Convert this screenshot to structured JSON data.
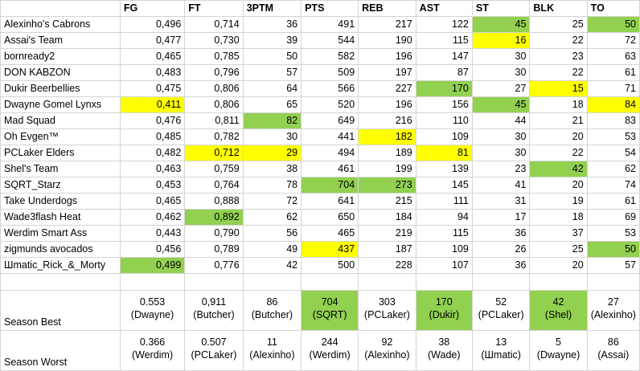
{
  "columns": [
    "FG",
    "FT",
    "3PTM",
    "PTS",
    "REB",
    "AST",
    "ST",
    "BLK",
    "TO"
  ],
  "colors": {
    "yellow": "#ffff00",
    "green": "#92d050"
  },
  "rows": [
    {
      "team": "Alexinho's Cabrons",
      "values": [
        "0,496",
        "0,714",
        "36",
        "491",
        "217",
        "122",
        "45",
        "25",
        "50"
      ],
      "hl": [
        "",
        "",
        "",
        "",
        "",
        "",
        "green",
        "",
        "green"
      ]
    },
    {
      "team": "Assai's Team",
      "values": [
        "0,477",
        "0,730",
        "39",
        "544",
        "190",
        "115",
        "16",
        "22",
        "72"
      ],
      "hl": [
        "",
        "",
        "",
        "",
        "",
        "",
        "yellow",
        "",
        ""
      ]
    },
    {
      "team": "bornready2",
      "values": [
        "0,465",
        "0,785",
        "50",
        "582",
        "196",
        "147",
        "30",
        "23",
        "63"
      ],
      "hl": [
        "",
        "",
        "",
        "",
        "",
        "",
        "",
        "",
        ""
      ]
    },
    {
      "team": "DON KABZON",
      "values": [
        "0,483",
        "0,796",
        "57",
        "509",
        "197",
        "87",
        "30",
        "22",
        "61"
      ],
      "hl": [
        "",
        "",
        "",
        "",
        "",
        "",
        "",
        "",
        ""
      ]
    },
    {
      "team": "Dukir Beerbellies",
      "values": [
        "0,475",
        "0,806",
        "64",
        "566",
        "227",
        "170",
        "27",
        "15",
        "71"
      ],
      "hl": [
        "",
        "",
        "",
        "",
        "",
        "green",
        "",
        "yellow",
        ""
      ]
    },
    {
      "team": "Dwayne Gomel Lynxs",
      "values": [
        "0,411",
        "0,806",
        "65",
        "520",
        "196",
        "156",
        "45",
        "18",
        "84"
      ],
      "hl": [
        "yellow",
        "",
        "",
        "",
        "",
        "",
        "green",
        "",
        "yellow"
      ]
    },
    {
      "team": "Mad Squad",
      "values": [
        "0,476",
        "0,811",
        "82",
        "649",
        "216",
        "110",
        "44",
        "21",
        "83"
      ],
      "hl": [
        "",
        "",
        "green",
        "",
        "",
        "",
        "",
        "",
        ""
      ]
    },
    {
      "team": "Oh Evgen™",
      "values": [
        "0,485",
        "0,782",
        "30",
        "441",
        "182",
        "109",
        "30",
        "20",
        "53"
      ],
      "hl": [
        "",
        "",
        "",
        "",
        "yellow",
        "",
        "",
        "",
        ""
      ]
    },
    {
      "team": "PCLaker Elders",
      "values": [
        "0,482",
        "0,712",
        "29",
        "494",
        "189",
        "81",
        "30",
        "22",
        "54"
      ],
      "hl": [
        "",
        "yellow",
        "yellow",
        "",
        "",
        "yellow",
        "",
        "",
        ""
      ]
    },
    {
      "team": "Shel's Team",
      "values": [
        "0,463",
        "0,759",
        "38",
        "461",
        "199",
        "139",
        "23",
        "42",
        "62"
      ],
      "hl": [
        "",
        "",
        "",
        "",
        "",
        "",
        "",
        "green",
        ""
      ]
    },
    {
      "team": "SQRT_Starz",
      "values": [
        "0,453",
        "0,764",
        "78",
        "704",
        "273",
        "145",
        "41",
        "20",
        "74"
      ],
      "hl": [
        "",
        "",
        "",
        "green",
        "green",
        "",
        "",
        "",
        ""
      ]
    },
    {
      "team": "Take Underdogs",
      "values": [
        "0,465",
        "0,888",
        "72",
        "641",
        "215",
        "111",
        "31",
        "19",
        "61"
      ],
      "hl": [
        "",
        "",
        "",
        "",
        "",
        "",
        "",
        "",
        ""
      ]
    },
    {
      "team": "Wade3flash Heat",
      "values": [
        "0,462",
        "0,892",
        "62",
        "650",
        "184",
        "94",
        "17",
        "18",
        "69"
      ],
      "hl": [
        "",
        "green",
        "",
        "",
        "",
        "",
        "",
        "",
        ""
      ]
    },
    {
      "team": "Werdim Smart Ass",
      "values": [
        "0,443",
        "0,790",
        "56",
        "465",
        "219",
        "115",
        "36",
        "37",
        "53"
      ],
      "hl": [
        "",
        "",
        "",
        "",
        "",
        "",
        "",
        "",
        ""
      ]
    },
    {
      "team": "zigmunds avocados",
      "values": [
        "0,456",
        "0,789",
        "49",
        "437",
        "187",
        "109",
        "26",
        "25",
        "50"
      ],
      "hl": [
        "",
        "",
        "",
        "yellow",
        "",
        "",
        "",
        "",
        "green"
      ]
    },
    {
      "team": "Шmatic_Rick_&_Morty",
      "values": [
        "0,499",
        "0,776",
        "42",
        "500",
        "228",
        "107",
        "36",
        "20",
        "57"
      ],
      "hl": [
        "green",
        "",
        "",
        "",
        "",
        "",
        "",
        "",
        ""
      ]
    }
  ],
  "season_best": {
    "label": "Season Best",
    "cells": [
      {
        "value": "0.553",
        "holder": "(Dwayne)",
        "hl": ""
      },
      {
        "value": "0,911",
        "holder": "(Butcher)",
        "hl": ""
      },
      {
        "value": "86",
        "holder": "(Butcher)",
        "hl": ""
      },
      {
        "value": "704",
        "holder": "(SQRT)",
        "hl": "green"
      },
      {
        "value": "303",
        "holder": "(PCLaker)",
        "hl": ""
      },
      {
        "value": "170",
        "holder": "(Dukir)",
        "hl": "green"
      },
      {
        "value": "52",
        "holder": "(PCLaker)",
        "hl": ""
      },
      {
        "value": "42",
        "holder": "(Shel)",
        "hl": "green"
      },
      {
        "value": "27",
        "holder": "(Alexinho)",
        "hl": ""
      }
    ]
  },
  "season_worst": {
    "label": "Season Worst",
    "cells": [
      {
        "value": "0.366",
        "holder": "(Werdim)",
        "hl": ""
      },
      {
        "value": "0.507",
        "holder": "(PCLaker)",
        "hl": ""
      },
      {
        "value": "11",
        "holder": "(Alexinho)",
        "hl": ""
      },
      {
        "value": "244",
        "holder": "(Werdim)",
        "hl": ""
      },
      {
        "value": "92",
        "holder": "(Alexinho)",
        "hl": ""
      },
      {
        "value": "38",
        "holder": "(Wade)",
        "hl": ""
      },
      {
        "value": "13",
        "holder": "(Шmatic)",
        "hl": ""
      },
      {
        "value": "5",
        "holder": "(Dwayne)",
        "hl": ""
      },
      {
        "value": "86",
        "holder": "(Assai)",
        "hl": ""
      }
    ]
  }
}
